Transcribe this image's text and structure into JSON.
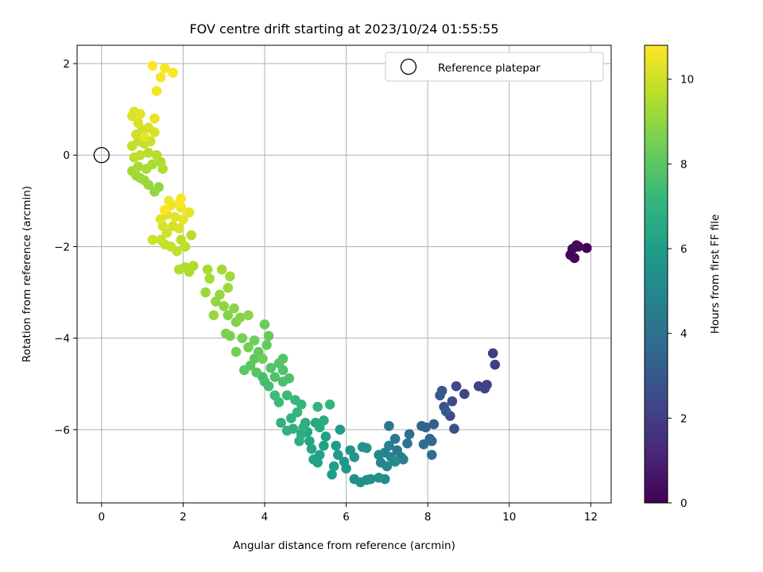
{
  "chart_data": {
    "type": "scatter",
    "title": "FOV centre drift starting at 2023/10/24 01:55:55",
    "xlabel": "Angular distance from reference (arcmin)",
    "ylabel": "Rotation from reference (arcmin)",
    "xlim": [
      -0.6,
      12.5
    ],
    "ylim": [
      -7.6,
      2.4
    ],
    "xticks": [
      0,
      2,
      4,
      6,
      8,
      10,
      12
    ],
    "yticks": [
      2,
      0,
      -2,
      -4,
      -6
    ],
    "grid": true,
    "legend": {
      "placement": "top-right",
      "entries": [
        "Reference platepar"
      ]
    },
    "reference_point": {
      "x": 0,
      "y": 0
    },
    "colorbar": {
      "label": "Hours from first FF file",
      "range": [
        0,
        10.8
      ],
      "ticks": [
        0,
        2,
        4,
        6,
        8,
        10
      ],
      "colormap": [
        "#440154",
        "#482878",
        "#3e4989",
        "#31688e",
        "#26828e",
        "#1f9e89",
        "#35b779",
        "#6ece58",
        "#b5de2b",
        "#fde725"
      ]
    },
    "points": [
      {
        "x": 11.9,
        "y": -2.03,
        "h": 0.05
      },
      {
        "x": 11.5,
        "y": -2.18,
        "h": 0.1
      },
      {
        "x": 11.6,
        "y": -2.25,
        "h": 0.15
      },
      {
        "x": 11.65,
        "y": -1.97,
        "h": 0.2
      },
      {
        "x": 11.55,
        "y": -2.05,
        "h": 0.25
      },
      {
        "x": 11.7,
        "y": -2.0,
        "h": 0.3
      },
      {
        "x": 9.6,
        "y": -4.33,
        "h": 2.0
      },
      {
        "x": 9.65,
        "y": -4.58,
        "h": 2.05
      },
      {
        "x": 9.45,
        "y": -5.02,
        "h": 2.1
      },
      {
        "x": 9.25,
        "y": -5.05,
        "h": 2.15
      },
      {
        "x": 9.4,
        "y": -5.1,
        "h": 2.2
      },
      {
        "x": 8.9,
        "y": -5.22,
        "h": 2.3
      },
      {
        "x": 8.7,
        "y": -5.05,
        "h": 2.4
      },
      {
        "x": 8.6,
        "y": -5.38,
        "h": 2.5
      },
      {
        "x": 8.55,
        "y": -5.7,
        "h": 2.6
      },
      {
        "x": 8.65,
        "y": -5.98,
        "h": 2.7
      },
      {
        "x": 8.4,
        "y": -5.5,
        "h": 2.8
      },
      {
        "x": 8.35,
        "y": -5.15,
        "h": 2.9
      },
      {
        "x": 8.3,
        "y": -5.25,
        "h": 3.0
      },
      {
        "x": 8.45,
        "y": -5.6,
        "h": 3.1
      },
      {
        "x": 8.15,
        "y": -5.88,
        "h": 3.3
      },
      {
        "x": 7.95,
        "y": -5.95,
        "h": 3.4
      },
      {
        "x": 7.85,
        "y": -5.92,
        "h": 3.5
      },
      {
        "x": 8.05,
        "y": -6.2,
        "h": 3.6
      },
      {
        "x": 8.1,
        "y": -6.25,
        "h": 3.7
      },
      {
        "x": 7.9,
        "y": -6.32,
        "h": 3.8
      },
      {
        "x": 8.1,
        "y": -6.55,
        "h": 3.9
      },
      {
        "x": 7.55,
        "y": -6.1,
        "h": 4.0
      },
      {
        "x": 7.5,
        "y": -6.3,
        "h": 4.1
      },
      {
        "x": 7.05,
        "y": -5.92,
        "h": 4.2
      },
      {
        "x": 7.2,
        "y": -6.2,
        "h": 4.3
      },
      {
        "x": 7.25,
        "y": -6.45,
        "h": 4.4
      },
      {
        "x": 7.35,
        "y": -6.6,
        "h": 4.5
      },
      {
        "x": 7.4,
        "y": -6.65,
        "h": 4.6
      },
      {
        "x": 7.05,
        "y": -6.35,
        "h": 4.7
      },
      {
        "x": 6.95,
        "y": -6.5,
        "h": 4.8
      },
      {
        "x": 6.85,
        "y": -6.72,
        "h": 4.9
      },
      {
        "x": 7.1,
        "y": -6.6,
        "h": 5.0
      },
      {
        "x": 7.0,
        "y": -6.8,
        "h": 5.05
      },
      {
        "x": 6.8,
        "y": -6.55,
        "h": 5.1
      },
      {
        "x": 7.2,
        "y": -6.7,
        "h": 5.2
      },
      {
        "x": 6.95,
        "y": -7.08,
        "h": 5.25
      },
      {
        "x": 6.6,
        "y": -7.08,
        "h": 5.3
      },
      {
        "x": 6.35,
        "y": -7.15,
        "h": 5.35
      },
      {
        "x": 6.2,
        "y": -7.08,
        "h": 5.4
      },
      {
        "x": 6.5,
        "y": -7.1,
        "h": 5.45
      },
      {
        "x": 6.8,
        "y": -7.05,
        "h": 5.5
      },
      {
        "x": 6.5,
        "y": -6.4,
        "h": 5.55
      },
      {
        "x": 6.4,
        "y": -6.38,
        "h": 5.6
      },
      {
        "x": 6.1,
        "y": -6.45,
        "h": 5.65
      },
      {
        "x": 6.2,
        "y": -6.6,
        "h": 5.7
      },
      {
        "x": 6.0,
        "y": -6.85,
        "h": 5.75
      },
      {
        "x": 5.95,
        "y": -6.7,
        "h": 5.8
      },
      {
        "x": 5.8,
        "y": -6.55,
        "h": 5.85
      },
      {
        "x": 5.85,
        "y": -6.0,
        "h": 5.9
      },
      {
        "x": 5.75,
        "y": -6.35,
        "h": 5.95
      },
      {
        "x": 5.7,
        "y": -6.8,
        "h": 6.0
      },
      {
        "x": 5.65,
        "y": -6.98,
        "h": 6.05
      },
      {
        "x": 5.5,
        "y": -6.15,
        "h": 6.1
      },
      {
        "x": 5.45,
        "y": -6.35,
        "h": 6.15
      },
      {
        "x": 5.35,
        "y": -6.55,
        "h": 6.2
      },
      {
        "x": 5.3,
        "y": -6.72,
        "h": 6.25
      },
      {
        "x": 5.2,
        "y": -6.65,
        "h": 6.3
      },
      {
        "x": 5.15,
        "y": -6.42,
        "h": 6.35
      },
      {
        "x": 5.1,
        "y": -6.25,
        "h": 6.4
      },
      {
        "x": 5.05,
        "y": -6.05,
        "h": 6.45
      },
      {
        "x": 5.25,
        "y": -5.85,
        "h": 6.5
      },
      {
        "x": 5.35,
        "y": -5.95,
        "h": 6.55
      },
      {
        "x": 5.45,
        "y": -5.8,
        "h": 6.6
      },
      {
        "x": 5.0,
        "y": -5.85,
        "h": 6.65
      },
      {
        "x": 4.9,
        "y": -6.1,
        "h": 6.7
      },
      {
        "x": 4.85,
        "y": -6.25,
        "h": 6.75
      },
      {
        "x": 4.95,
        "y": -5.95,
        "h": 6.8
      },
      {
        "x": 4.7,
        "y": -5.98,
        "h": 6.85
      },
      {
        "x": 4.55,
        "y": -6.02,
        "h": 6.9
      },
      {
        "x": 4.4,
        "y": -5.85,
        "h": 6.95
      },
      {
        "x": 4.65,
        "y": -5.75,
        "h": 7.0
      },
      {
        "x": 4.8,
        "y": -5.62,
        "h": 7.05
      },
      {
        "x": 5.3,
        "y": -5.5,
        "h": 7.1
      },
      {
        "x": 5.6,
        "y": -5.45,
        "h": 7.15
      },
      {
        "x": 4.9,
        "y": -5.45,
        "h": 7.2
      },
      {
        "x": 4.75,
        "y": -5.35,
        "h": 7.25
      },
      {
        "x": 4.55,
        "y": -5.25,
        "h": 7.3
      },
      {
        "x": 4.35,
        "y": -5.4,
        "h": 7.35
      },
      {
        "x": 4.25,
        "y": -5.25,
        "h": 7.4
      },
      {
        "x": 4.1,
        "y": -5.05,
        "h": 7.45
      },
      {
        "x": 4.0,
        "y": -4.95,
        "h": 7.5
      },
      {
        "x": 3.95,
        "y": -4.85,
        "h": 7.55
      },
      {
        "x": 4.45,
        "y": -4.95,
        "h": 7.6
      },
      {
        "x": 4.6,
        "y": -4.88,
        "h": 7.65
      },
      {
        "x": 4.45,
        "y": -4.7,
        "h": 7.7
      },
      {
        "x": 4.25,
        "y": -4.85,
        "h": 7.75
      },
      {
        "x": 4.15,
        "y": -4.65,
        "h": 7.8
      },
      {
        "x": 4.35,
        "y": -4.55,
        "h": 7.85
      },
      {
        "x": 4.45,
        "y": -4.45,
        "h": 7.9
      },
      {
        "x": 3.8,
        "y": -4.75,
        "h": 7.95
      },
      {
        "x": 3.65,
        "y": -4.6,
        "h": 8.0
      },
      {
        "x": 3.5,
        "y": -4.7,
        "h": 8.05
      },
      {
        "x": 3.75,
        "y": -4.45,
        "h": 8.1
      },
      {
        "x": 3.85,
        "y": -4.3,
        "h": 8.15
      },
      {
        "x": 4.05,
        "y": -4.15,
        "h": 8.2
      },
      {
        "x": 4.1,
        "y": -3.95,
        "h": 8.25
      },
      {
        "x": 4.0,
        "y": -3.7,
        "h": 8.3
      },
      {
        "x": 3.95,
        "y": -4.45,
        "h": 8.35
      },
      {
        "x": 3.75,
        "y": -4.05,
        "h": 8.4
      },
      {
        "x": 3.6,
        "y": -4.2,
        "h": 8.45
      },
      {
        "x": 3.3,
        "y": -4.3,
        "h": 8.5
      },
      {
        "x": 3.45,
        "y": -4.0,
        "h": 8.55
      },
      {
        "x": 3.15,
        "y": -3.95,
        "h": 8.6
      },
      {
        "x": 3.05,
        "y": -3.9,
        "h": 8.65
      },
      {
        "x": 3.3,
        "y": -3.65,
        "h": 8.7
      },
      {
        "x": 3.1,
        "y": -3.5,
        "h": 8.75
      },
      {
        "x": 3.4,
        "y": -3.55,
        "h": 8.8
      },
      {
        "x": 3.6,
        "y": -3.5,
        "h": 8.85
      },
      {
        "x": 3.25,
        "y": -3.35,
        "h": 8.9
      },
      {
        "x": 3.0,
        "y": -3.3,
        "h": 8.95
      },
      {
        "x": 2.8,
        "y": -3.2,
        "h": 9.0
      },
      {
        "x": 2.9,
        "y": -3.05,
        "h": 9.05
      },
      {
        "x": 2.75,
        "y": -3.5,
        "h": 9.1
      },
      {
        "x": 2.55,
        "y": -3.0,
        "h": 9.15
      },
      {
        "x": 3.1,
        "y": -2.9,
        "h": 9.2
      },
      {
        "x": 3.15,
        "y": -2.65,
        "h": 9.25
      },
      {
        "x": 2.95,
        "y": -2.5,
        "h": 9.3
      },
      {
        "x": 2.65,
        "y": -2.7,
        "h": 9.35
      },
      {
        "x": 2.6,
        "y": -2.5,
        "h": 9.4
      },
      {
        "x": 2.25,
        "y": -2.42,
        "h": 9.45
      },
      {
        "x": 2.15,
        "y": -2.55,
        "h": 9.5
      },
      {
        "x": 2.05,
        "y": -2.45,
        "h": 9.55
      },
      {
        "x": 1.9,
        "y": -2.5,
        "h": 9.6
      },
      {
        "x": 2.2,
        "y": -1.75,
        "h": 9.65
      },
      {
        "x": 2.05,
        "y": -2.0,
        "h": 9.7
      },
      {
        "x": 1.95,
        "y": -1.85,
        "h": 9.75
      },
      {
        "x": 1.85,
        "y": -2.1,
        "h": 9.8
      },
      {
        "x": 1.7,
        "y": -2.0,
        "h": 9.85
      },
      {
        "x": 1.55,
        "y": -1.95,
        "h": 9.9
      },
      {
        "x": 1.45,
        "y": -1.85,
        "h": 9.95
      },
      {
        "x": 1.25,
        "y": -1.85,
        "h": 10.0
      },
      {
        "x": 1.6,
        "y": -1.7,
        "h": 10.05
      },
      {
        "x": 1.5,
        "y": -1.55,
        "h": 10.1
      },
      {
        "x": 1.75,
        "y": -1.55,
        "h": 10.15
      },
      {
        "x": 1.9,
        "y": -1.6,
        "h": 10.2
      },
      {
        "x": 1.45,
        "y": -1.4,
        "h": 10.25
      },
      {
        "x": 1.6,
        "y": -1.3,
        "h": 10.3
      },
      {
        "x": 1.8,
        "y": -1.35,
        "h": 10.35
      },
      {
        "x": 2.0,
        "y": -1.4,
        "h": 10.4
      },
      {
        "x": 2.15,
        "y": -1.25,
        "h": 10.45
      },
      {
        "x": 1.95,
        "y": -1.15,
        "h": 10.5
      },
      {
        "x": 1.7,
        "y": -1.1,
        "h": 10.55
      },
      {
        "x": 1.65,
        "y": -1.0,
        "h": 10.6
      },
      {
        "x": 1.9,
        "y": -1.05,
        "h": 10.65
      },
      {
        "x": 1.95,
        "y": -0.95,
        "h": 10.7
      },
      {
        "x": 1.55,
        "y": -1.2,
        "h": 10.75
      },
      {
        "x": 1.4,
        "y": -0.7,
        "h": 9.0
      },
      {
        "x": 1.3,
        "y": -0.8,
        "h": 9.05
      },
      {
        "x": 1.15,
        "y": -0.65,
        "h": 9.1
      },
      {
        "x": 1.05,
        "y": -0.55,
        "h": 9.15
      },
      {
        "x": 0.95,
        "y": -0.5,
        "h": 9.2
      },
      {
        "x": 0.85,
        "y": -0.45,
        "h": 9.25
      },
      {
        "x": 0.75,
        "y": -0.35,
        "h": 9.3
      },
      {
        "x": 0.9,
        "y": -0.25,
        "h": 9.35
      },
      {
        "x": 1.1,
        "y": -0.3,
        "h": 9.4
      },
      {
        "x": 1.25,
        "y": -0.2,
        "h": 9.45
      },
      {
        "x": 1.45,
        "y": -0.15,
        "h": 9.5
      },
      {
        "x": 1.5,
        "y": -0.3,
        "h": 9.55
      },
      {
        "x": 1.35,
        "y": 0.0,
        "h": 9.6
      },
      {
        "x": 1.15,
        "y": 0.05,
        "h": 9.65
      },
      {
        "x": 0.95,
        "y": 0.0,
        "h": 9.7
      },
      {
        "x": 0.8,
        "y": -0.05,
        "h": 9.75
      },
      {
        "x": 0.75,
        "y": 0.2,
        "h": 9.8
      },
      {
        "x": 0.9,
        "y": 0.3,
        "h": 9.85
      },
      {
        "x": 1.05,
        "y": 0.25,
        "h": 9.9
      },
      {
        "x": 1.2,
        "y": 0.3,
        "h": 9.95
      },
      {
        "x": 0.85,
        "y": 0.45,
        "h": 10.0
      },
      {
        "x": 1.0,
        "y": 0.55,
        "h": 10.05
      },
      {
        "x": 1.15,
        "y": 0.6,
        "h": 10.1
      },
      {
        "x": 1.3,
        "y": 0.5,
        "h": 10.15
      },
      {
        "x": 0.9,
        "y": 0.7,
        "h": 10.2
      },
      {
        "x": 0.75,
        "y": 0.85,
        "h": 10.25
      },
      {
        "x": 0.8,
        "y": 0.95,
        "h": 10.3
      },
      {
        "x": 0.95,
        "y": 0.9,
        "h": 10.35
      },
      {
        "x": 1.3,
        "y": 0.8,
        "h": 10.4
      },
      {
        "x": 1.05,
        "y": 0.4,
        "h": 10.45
      },
      {
        "x": 1.35,
        "y": 1.4,
        "h": 10.6
      },
      {
        "x": 1.45,
        "y": 1.7,
        "h": 10.65
      },
      {
        "x": 1.55,
        "y": 1.9,
        "h": 10.7
      },
      {
        "x": 1.75,
        "y": 1.8,
        "h": 10.75
      },
      {
        "x": 1.25,
        "y": 1.95,
        "h": 10.8
      }
    ]
  }
}
